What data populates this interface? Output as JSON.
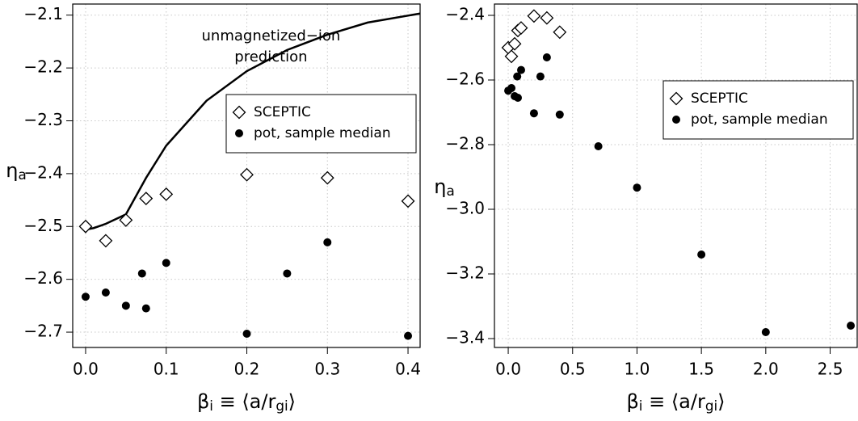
{
  "chart_data": [
    {
      "type": "scatter",
      "x_label": [
        "β",
        "i",
        " ≡ ⟨a/r",
        "gi",
        "⟩"
      ],
      "y_label": [
        "η",
        "a"
      ],
      "annotation": [
        "unmagnetized−ion",
        "prediction"
      ],
      "xlim": [
        -0.016,
        0.415
      ],
      "ylim": [
        -2.729,
        -2.079
      ],
      "xticks": [
        {
          "value": 0,
          "label": "0.0"
        },
        0.1,
        0.2,
        0.3,
        0.4
      ],
      "yticks": [
        {
          "value": -2.7,
          "label": "−2.7"
        },
        {
          "value": -2.6,
          "label": "−2.6"
        },
        {
          "value": -2.5,
          "label": "−2.5"
        },
        {
          "value": -2.4,
          "label": "−2.4"
        },
        {
          "value": -2.3,
          "label": "−2.3"
        },
        {
          "value": -2.2,
          "label": "−2.2"
        },
        {
          "value": -2.1,
          "label": "−2.1"
        }
      ],
      "grid": true,
      "legend": "right",
      "series": [
        {
          "type": "line",
          "color": "#000000",
          "x": [
            0,
            0.01,
            0.025,
            0.05,
            0.075,
            0.1,
            0.15,
            0.2,
            0.25,
            0.3,
            0.35,
            0.415
          ],
          "values": [
            -2.506,
            -2.503,
            -2.495,
            -2.477,
            -2.408,
            -2.347,
            -2.262,
            -2.206,
            -2.166,
            -2.137,
            -2.114,
            -2.097
          ]
        },
        {
          "name": "SCEPTIC",
          "marker": "diamond",
          "color": "#000000",
          "x": [
            0,
            0.025,
            0.05,
            0.075,
            0.1,
            0.2,
            0.3,
            0.4
          ],
          "values": [
            -2.5,
            -2.527,
            -2.488,
            -2.447,
            -2.439,
            -2.402,
            -2.408,
            -2.452
          ]
        },
        {
          "name": "pot, sample median",
          "marker": "circle",
          "color": "#000000",
          "x": [
            0,
            0.025,
            0.05,
            0.07,
            0.075,
            0.1,
            0.2,
            0.25,
            0.3,
            0.4
          ],
          "values": [
            -2.633,
            -2.625,
            -2.65,
            -2.589,
            -2.655,
            -2.569,
            -2.703,
            -2.589,
            -2.53,
            -2.707
          ]
        }
      ]
    },
    {
      "type": "scatter",
      "x_label": [
        "β",
        "i",
        " ≡ ⟨a/r",
        "gi",
        "⟩"
      ],
      "y_label": [
        "η",
        "a"
      ],
      "xlim": [
        -0.107,
        2.71
      ],
      "ylim": [
        -3.4275,
        -2.365
      ],
      "xticks": [
        {
          "value": 0,
          "label": "0.0"
        },
        0.5,
        {
          "value": 1,
          "label": "1.0"
        },
        1.5,
        {
          "value": 2,
          "label": "2.0"
        },
        2.5
      ],
      "yticks": [
        {
          "value": -3.4,
          "label": "−3.4"
        },
        {
          "value": -3.2,
          "label": "−3.2"
        },
        {
          "value": -3.0,
          "label": "−3.0"
        },
        {
          "value": -2.8,
          "label": "−2.8"
        },
        {
          "value": -2.6,
          "label": "−2.6"
        },
        {
          "value": -2.4,
          "label": "−2.4"
        }
      ],
      "grid": true,
      "legend": "right",
      "series": [
        {
          "name": "SCEPTIC",
          "marker": "diamond",
          "color": "#000000",
          "x": [
            0,
            0.025,
            0.05,
            0.075,
            0.1,
            0.2,
            0.3,
            0.4
          ],
          "values": [
            -2.5,
            -2.527,
            -2.488,
            -2.447,
            -2.439,
            -2.402,
            -2.408,
            -2.452
          ]
        },
        {
          "name": "pot, sample median",
          "marker": "circle",
          "color": "#000000",
          "x": [
            0,
            0.025,
            0.05,
            0.07,
            0.075,
            0.1,
            0.2,
            0.25,
            0.3,
            0.4,
            0.7,
            1.0,
            1.5,
            2.0,
            2.66
          ],
          "values": [
            -2.633,
            -2.625,
            -2.65,
            -2.589,
            -2.655,
            -2.569,
            -2.703,
            -2.589,
            -2.53,
            -2.707,
            -2.805,
            -2.933,
            -3.14,
            -3.38,
            -3.36
          ]
        }
      ]
    }
  ]
}
